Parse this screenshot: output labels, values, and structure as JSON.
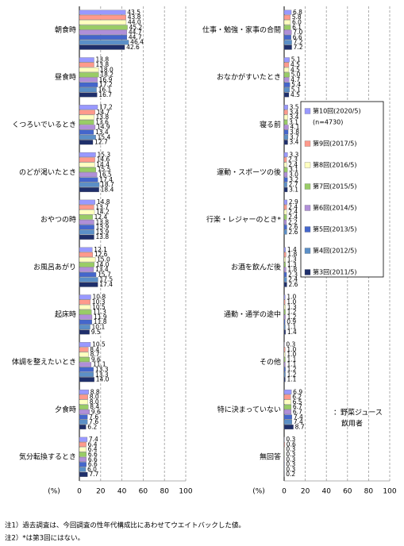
{
  "chart_data": [
    {
      "type": "hbar",
      "xlabel": "(%)",
      "xlim": [
        0,
        100
      ],
      "xticks": [
        0,
        20,
        40,
        60,
        80,
        100
      ],
      "grid": true,
      "categories": [
        "朝食時",
        "昼食時",
        "くつろいでいるとき",
        "のどが渇いたとき",
        "おやつの時",
        "お風呂あがり",
        "起床時",
        "体調を整えたいとき",
        "夕食時",
        "気分転換するとき"
      ],
      "series": [
        {
          "color": "#9999ff",
          "values": [
            43.5,
            13.8,
            17.2,
            15.3,
            14.8,
            12.1,
            10.8,
            10.5,
            8.8,
            7.4
          ],
          "value_labels": [
            "43.5",
            "13.8",
            "17.2",
            "15.3",
            "14.8",
            "12.1",
            "10.8",
            "10.5",
            "8.8",
            "7.4"
          ]
        },
        {
          "color": "#ff9a8c",
          "values": [
            43.8,
            13.8,
            14.7,
            14.6,
            13.7,
            12.6,
            10.3,
            8.4,
            8.0,
            6.4
          ],
          "value_labels": [
            "43.8",
            "13.8",
            "14.7",
            "14.6",
            "13.7",
            "12.6",
            "10.3",
            "8.4",
            "8.0",
            "6.4"
          ]
        },
        {
          "color": "#ffffc0",
          "values": [
            44.0,
            18.0,
            13.8,
            14.4,
            14.2,
            15.0,
            10.5,
            8.7,
            8.0,
            6.4
          ],
          "value_labels": [
            "44.0",
            "18.0",
            "13.8",
            "14.4",
            "14.2",
            "15.0",
            "10.5",
            "8.7",
            "8.0",
            "6.4"
          ]
        },
        {
          "color": "#99cc66",
          "values": [
            45.2,
            18.2,
            13.6,
            15.5,
            12.4,
            14.0,
            11.3,
            9.6,
            8.4,
            6.6
          ],
          "value_labels": [
            "45.2",
            "18.2",
            "13.6",
            "15.5",
            "12.4",
            "14.0",
            "11.3",
            "9.6",
            "8.4",
            "6.6"
          ]
        },
        {
          "color": "#b08fd8",
          "values": [
            44.7,
            16.9,
            14.9,
            16.5,
            13.8,
            13.4,
            11.9,
            11.1,
            9.6,
            6.6
          ],
          "value_labels": [
            "44.7",
            "16.9",
            "14.9",
            "16.5",
            "13.8",
            "13.4",
            "11.9",
            "11.1",
            "9.6",
            "6.6"
          ]
        },
        {
          "color": "#4466cc",
          "values": [
            44.7,
            17.2,
            13.4,
            17.4,
            13.9,
            15.7,
            11.8,
            13.3,
            7.6,
            6.6
          ],
          "value_labels": [
            "44.7",
            "17.2",
            "13.4",
            "17.4",
            "13.9",
            "15.7",
            "11.8",
            "13.3",
            "7.6",
            "6.6"
          ]
        },
        {
          "color": "#5b8fc7",
          "values": [
            46.4,
            16.1,
            15.4,
            18.7,
            13.9,
            17.5,
            10.1,
            13.3,
            7.6,
            6.0
          ],
          "value_labels": [
            "46.4",
            "16.1",
            "15.4",
            "18.7",
            "13.9",
            "17.5",
            "10.1",
            "13.3",
            "7.6",
            "6.0"
          ]
        },
        {
          "color": "#1f2f6b",
          "values": [
            42.6,
            16.7,
            12.7,
            18.4,
            13.8,
            17.4,
            9.5,
            14.0,
            6.2,
            7.7
          ],
          "value_labels": [
            "42.6",
            "16.7",
            "12.7",
            "18.4",
            "13.8",
            "17.4",
            "9.5",
            "14.0",
            "6.2",
            "7.7"
          ]
        }
      ]
    },
    {
      "type": "hbar",
      "xlabel": "(%)",
      "xlim": [
        0,
        100
      ],
      "xticks": [
        0,
        20,
        40,
        60,
        80,
        100
      ],
      "grid": true,
      "categories": [
        "仕事・勉強・家事の合間",
        "おなかがすいたとき",
        "寝る前",
        "運動・スポーツの後",
        "行楽・レジャーのとき*",
        "お酒を飲んだ後",
        "通勤・通学の途中",
        "その他",
        "特に決まっていない",
        "無回答"
      ],
      "legend_note": "(n=4730)",
      "annotation": [
        "：野菜ジュース",
        "飲用者"
      ],
      "series": [
        {
          "name": "第10回(2020/5)",
          "color": "#9999ff",
          "values": [
            6.8,
            5.1,
            3.5,
            3.3,
            2.9,
            1.4,
            1.0,
            0.3,
            6.9,
            0.3
          ],
          "value_labels": [
            "6.8",
            "5.1",
            "3.5",
            "3.3",
            "2.9",
            "1.4",
            "1.0",
            "0.3",
            "6.9",
            "0.3"
          ]
        },
        {
          "name": "第9回(2017/5)",
          "color": "#ff9a8c",
          "values": [
            5.8,
            4.5,
            3.4,
            2.3,
            2.4,
            1.8,
            1.0,
            1.0,
            6.2,
            0.6
          ],
          "value_labels": [
            "5.8",
            "4.5",
            "3.4",
            "2.3",
            "2.4",
            "1.8",
            "1.0",
            "1.0",
            "6.2",
            "0.6"
          ]
        },
        {
          "name": "第8回(2016/5)",
          "color": "#ffffc0",
          "values": [
            6.0,
            4.5,
            3.4,
            2.4,
            2.4,
            1.3,
            1.3,
            1.0,
            6.5,
            0.3
          ],
          "value_labels": [
            "6.0",
            "4.5",
            "3.4",
            "2.4",
            "2.4",
            "1.3",
            "1.3",
            "1.0",
            "6.5",
            "0.3"
          ]
        },
        {
          "name": "第7回(2015/5)",
          "color": "#99cc66",
          "values": [
            6.1,
            5.0,
            3.1,
            3.1,
            2.4,
            1.3,
            1.2,
            1.1,
            6.7,
            0.3
          ],
          "value_labels": [
            "6.1",
            "5.0",
            "3.1",
            "3.1",
            "2.4",
            "1.3",
            "1.2",
            "1.1",
            "6.7",
            "0.3"
          ]
        },
        {
          "name": "第6回(2014/5)",
          "color": "#b08fd8",
          "values": [
            7.0,
            4.7,
            4.1,
            3.0,
            2.2,
            1.8,
            1.2,
            1.1,
            6.7,
            0.3
          ],
          "value_labels": [
            "7.0",
            "4.7",
            "4.1",
            "3.0",
            "2.2",
            "1.8",
            "1.2",
            "1.1",
            "6.7",
            "0.3"
          ]
        },
        {
          "name": "第5回(2013/5)",
          "color": "#4466cc",
          "values": [
            6.6,
            5.4,
            3.8,
            3.2,
            2.6,
            2.3,
            0.9,
            1.2,
            7.4,
            0.3
          ],
          "value_labels": [
            "6.6",
            "5.4",
            "3.8",
            "3.2",
            "2.6",
            "2.3",
            "0.9",
            "1.2",
            "7.4",
            "0.3"
          ]
        },
        {
          "name": "第4回(2012/5)",
          "color": "#5b8fc7",
          "values": [
            7.2,
            5.1,
            3.7,
            2.7,
            2.6,
            2.4,
            1.1,
            1.2,
            7.4,
            0.3
          ],
          "value_labels": [
            "7.2",
            "5.1",
            "3.7",
            "2.7",
            "2.6",
            "2.4",
            "1.1",
            "1.2",
            "7.4",
            "0.3"
          ]
        },
        {
          "name": "第3回(2011/5)",
          "color": "#1f2f6b",
          "values": [
            7.2,
            4.5,
            3.4,
            3.1,
            null,
            2.6,
            1.4,
            1.1,
            8.7,
            0.2
          ],
          "value_labels": [
            "7.2",
            "4.5",
            "3.4",
            "3.1",
            null,
            "2.6",
            "1.4",
            "1.1",
            "8.7",
            "0.2"
          ]
        }
      ]
    }
  ],
  "notes": [
    "注1）過去調査は、今回調査の性年代構成比にあわせてウエイトバックした値。",
    "注2）*は第3回にはない。"
  ]
}
